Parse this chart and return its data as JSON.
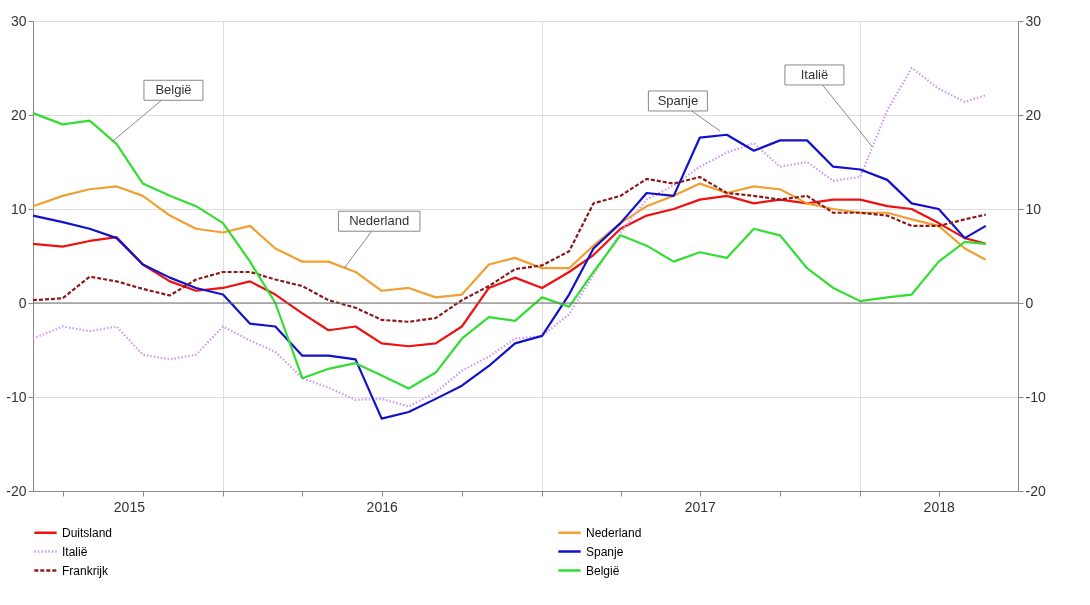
{
  "chart_data": {
    "type": "line",
    "x": [
      "2015-05-28",
      "2015-07-01",
      "2015-08-01",
      "2015-09-01",
      "2015-10-01",
      "2015-11-01",
      "2015-12-01",
      "2016-01-01",
      "2016-02-01",
      "2016-03-01",
      "2016-04-01",
      "2016-05-01",
      "2016-06-01",
      "2016-07-01",
      "2016-08-01",
      "2016-09-01",
      "2016-10-01",
      "2016-11-01",
      "2016-12-01",
      "2017-01-01",
      "2017-02-01",
      "2017-03-01",
      "2017-04-01",
      "2017-05-01",
      "2017-06-01",
      "2017-07-01",
      "2017-08-01",
      "2017-09-01",
      "2017-10-01",
      "2017-11-01",
      "2017-12-01",
      "2018-01-01",
      "2018-02-01",
      "2018-03-01",
      "2018-04-01",
      "2018-05-01",
      "2018-05-25"
    ],
    "series": [
      {
        "name": "Duitsland",
        "color": "#ee1111",
        "line_style": "solid",
        "values": [
          6.3,
          6.0,
          6.6,
          7.0,
          4.1,
          2.3,
          1.3,
          1.6,
          2.3,
          0.9,
          -1.1,
          -2.9,
          -2.5,
          -4.3,
          -4.6,
          -4.3,
          -2.5,
          1.6,
          2.7,
          1.6,
          3.3,
          5.1,
          7.9,
          9.3,
          10,
          11,
          11.4,
          10.6,
          11,
          10.6,
          11,
          11,
          10.3,
          10,
          8.5,
          6.9,
          6.3
        ]
      },
      {
        "name": "Nederland",
        "color": "#f0a030",
        "line_style": "solid",
        "values": [
          10.3,
          11.4,
          12.1,
          12.4,
          11.4,
          9.3,
          7.9,
          7.5,
          8.2,
          5.8,
          4.4,
          4.4,
          3.3,
          1.3,
          1.6,
          0.6,
          0.9,
          4.1,
          4.8,
          3.7,
          3.7,
          6.1,
          8.5,
          10.3,
          11.4,
          12.7,
          11.7,
          12.4,
          12.1,
          10.6,
          10,
          9.6,
          9.6,
          8.9,
          8.2,
          5.8,
          4.6
        ]
      },
      {
        "name": "Italië",
        "color": "#cc99ee",
        "line_style": "dotted",
        "values": [
          -3.8,
          -2.5,
          -3.0,
          -2.5,
          -5.5,
          -6.0,
          -5.5,
          -2.5,
          -4.0,
          -5.2,
          -8.0,
          -9.0,
          -10.3,
          -10.2,
          -11.0,
          -9.5,
          -7.2,
          -5.7,
          -3.8,
          -3.5,
          -1.2,
          3.0,
          7.5,
          11.0,
          12.5,
          14.5,
          16.0,
          17.0,
          14.5,
          15.0,
          13.0,
          13.4,
          20.5,
          25.0,
          22.8,
          21.4,
          22.1
        ]
      },
      {
        "name": "Spanje",
        "color": "#1111cc",
        "line_style": "solid",
        "values": [
          9.3,
          8.6,
          7.9,
          6.9,
          4.1,
          2.7,
          1.6,
          0.9,
          -2.2,
          -2.5,
          -5.6,
          -5.6,
          -6.0,
          -12.3,
          -11.6,
          -10.2,
          -8.8,
          -6.7,
          -4.3,
          -3.5,
          0.9,
          5.8,
          8.5,
          11.7,
          11.4,
          17.6,
          17.9,
          16.2,
          17.3,
          17.3,
          14.5,
          14.2,
          13.1,
          10.6,
          10,
          6.9,
          8.2
        ]
      },
      {
        "name": "Frankrijk",
        "color": "#8b1a1a",
        "line_style": "dashed",
        "values": [
          0.3,
          0.5,
          2.8,
          2.3,
          1.5,
          0.8,
          2.5,
          3.3,
          3.3,
          2.5,
          1.8,
          0.3,
          -0.5,
          -1.8,
          -2.0,
          -1.6,
          0.3,
          1.8,
          3.6,
          4.0,
          5.5,
          10.6,
          11.4,
          13.2,
          12.7,
          13.4,
          11.7,
          11.4,
          11,
          11.4,
          9.6,
          9.6,
          9.3,
          8.2,
          8.2,
          8.9,
          9.4
        ]
      },
      {
        "name": "België",
        "color": "#33dd33",
        "line_style": "solid",
        "values": [
          20.2,
          19.0,
          19.4,
          16.9,
          12.7,
          11.4,
          10.3,
          8.5,
          4.4,
          0.0,
          -8.0,
          -7.0,
          -6.4,
          -7.7,
          -9.1,
          -7.4,
          -3.8,
          -1.5,
          -1.9,
          0.6,
          -0.4,
          3.3,
          7.2,
          6.1,
          4.4,
          5.4,
          4.8,
          7.9,
          7.2,
          3.7,
          1.6,
          0.2,
          0.6,
          0.9,
          4.4,
          6.5,
          6.3
        ]
      }
    ],
    "xlim": [
      "2015-05-28",
      "2018-07-01"
    ],
    "xticks": [
      {
        "value": "2015-07-01",
        "label": null
      },
      {
        "value": "2015-09-15",
        "label": "2015"
      },
      {
        "value": "2015-10-01",
        "label": null
      },
      {
        "value": "2016-01-01",
        "label": null
      },
      {
        "value": "2016-04-01",
        "label": null
      },
      {
        "value": "2016-07-01",
        "label": "2016"
      },
      {
        "value": "2016-10-01",
        "label": null
      },
      {
        "value": "2017-01-01",
        "label": null
      },
      {
        "value": "2017-04-01",
        "label": null
      },
      {
        "value": "2017-07-01",
        "label": "2017"
      },
      {
        "value": "2017-10-01",
        "label": null
      },
      {
        "value": "2018-01-01",
        "label": null
      },
      {
        "value": "2018-04-01",
        "label": "2018"
      }
    ],
    "ylim": [
      -20,
      30
    ],
    "yticks": [
      -20,
      -10,
      0,
      10,
      20,
      30
    ],
    "y2lim": [
      -20,
      30
    ],
    "y2ticks": [
      -20,
      -10,
      0,
      10,
      20,
      30
    ],
    "ref_lines": [
      {
        "axis": "y",
        "value": 0,
        "color": "#707070"
      }
    ],
    "annotations": [
      {
        "text": "België",
        "x": "2015-08-26",
        "y": 17.1
      },
      {
        "text": "Nederland",
        "x": "2016-05-19",
        "y": 3.7
      },
      {
        "text": "Spanje",
        "x": "2017-07-24",
        "y": 18.3
      },
      {
        "text": "Italië",
        "x": "2018-01-15",
        "y": 16.6
      }
    ],
    "grid": true,
    "legend": "bottom"
  }
}
